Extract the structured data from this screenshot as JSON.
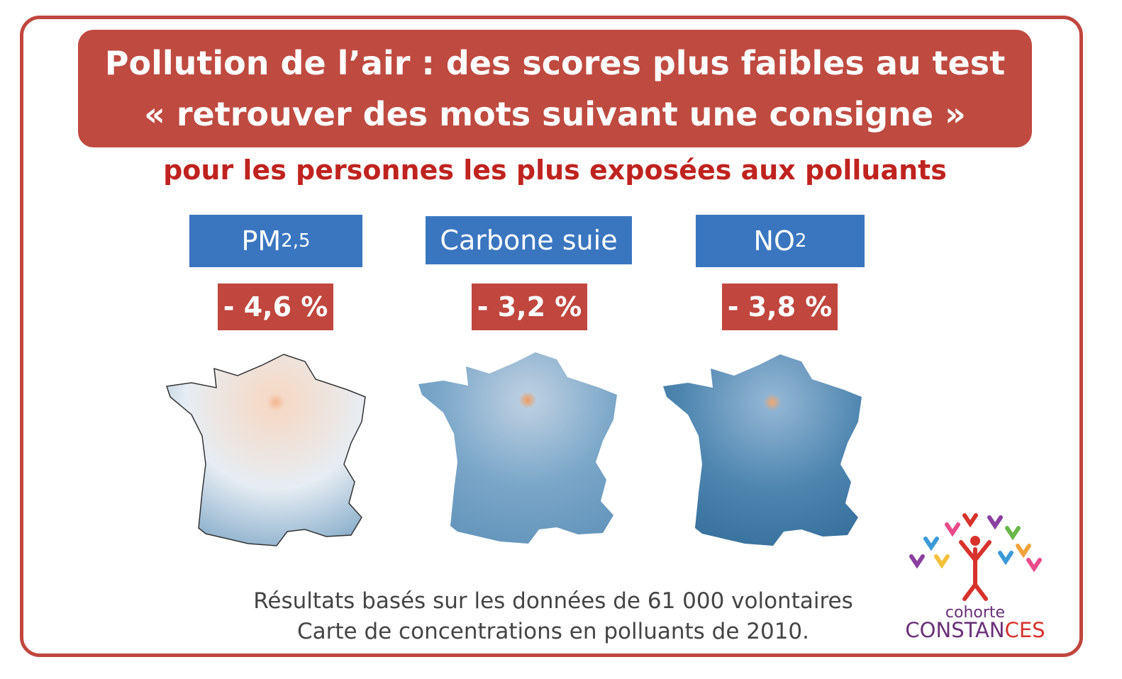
{
  "header": {
    "title_lines": [
      "Pollution de l’air : des scores plus faibles au test",
      "« retrouver des mots suivant une consigne »"
    ],
    "subtitle": "pour les personnes les plus exposées aux polluants"
  },
  "pollutants": [
    {
      "name": "PM",
      "sub": "2,5",
      "change": "- 4,6 %"
    },
    {
      "name": "Carbone suie",
      "change": "- 3,2 %"
    },
    {
      "name": "NO",
      "sub": "2",
      "change": "- 3,8 %"
    }
  ],
  "footer": {
    "lines": [
      "Résultats basés sur les données de 61 000 volontaires",
      "Carte de concentrations en polluants de 2010."
    ]
  },
  "logo": {
    "line1": "cohorte",
    "line2": [
      "CONSTAN",
      "CES"
    ]
  }
}
